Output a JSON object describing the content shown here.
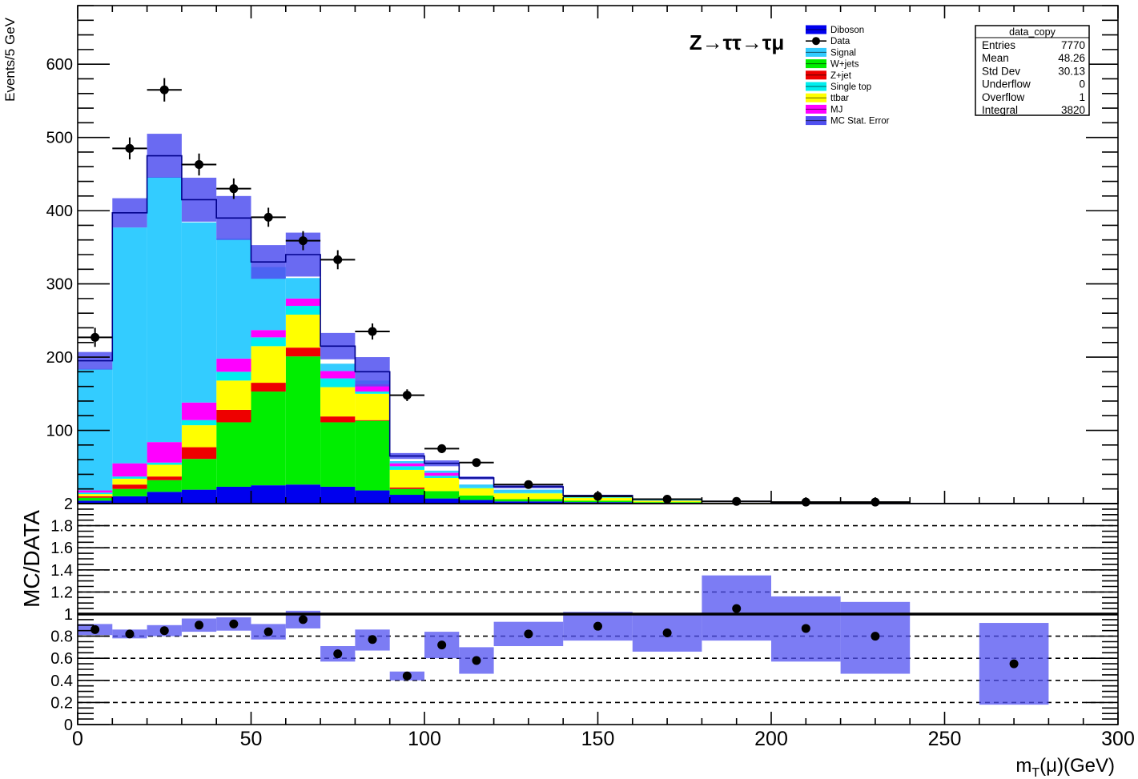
{
  "chart_data": [
    {
      "type": "bar",
      "stacked": true,
      "title": "Z→ττ→τμ",
      "ylabel": "Events/5 GeV",
      "xlabel": "",
      "xlim": [
        0,
        300
      ],
      "ylim": [
        0,
        680
      ],
      "yticks": [
        100,
        200,
        300,
        400,
        500,
        600
      ],
      "bin_edges": [
        0,
        10,
        20,
        30,
        40,
        50,
        60,
        70,
        80,
        90,
        100,
        110,
        120,
        140,
        160,
        180,
        200,
        220,
        240,
        260,
        280,
        300
      ],
      "legend_position": "top-center",
      "legend": [
        {
          "label": "Diboson",
          "color": "#0000ee"
        },
        {
          "label": "Data",
          "color": "#000000"
        },
        {
          "label": "Signal",
          "color": "#33ccff"
        },
        {
          "label": "W+jets",
          "color": "#00ee00"
        },
        {
          "label": "Z+jet",
          "color": "#ee0000"
        },
        {
          "label": "Single top",
          "color": "#00eeee"
        },
        {
          "label": "ttbar",
          "color": "#ffff00"
        },
        {
          "label": "MJ",
          "color": "#ff00ff"
        },
        {
          "label": "MC Stat. Error",
          "color": "#5050f0"
        }
      ],
      "series": [
        {
          "name": "Diboson",
          "color": "#0000ee",
          "values": [
            4,
            10,
            16,
            19,
            23,
            25,
            26,
            23,
            18,
            12,
            7,
            5,
            3,
            2,
            1,
            0,
            0,
            0,
            0,
            0,
            0
          ]
        },
        {
          "name": "W+jets",
          "color": "#00ee00",
          "values": [
            4,
            10,
            16,
            42,
            88,
            128,
            175,
            88,
            95,
            8,
            10,
            6,
            3,
            2,
            1,
            0,
            0,
            0,
            0,
            0,
            0
          ]
        },
        {
          "name": "Z+jet",
          "color": "#ee0000",
          "values": [
            2,
            6,
            5,
            16,
            17,
            12,
            12,
            8,
            1,
            2,
            0,
            0,
            0,
            0,
            0,
            0,
            0,
            0,
            0,
            0,
            0
          ]
        },
        {
          "name": "ttbar",
          "color": "#ffff00",
          "values": [
            3,
            8,
            16,
            30,
            40,
            50,
            45,
            40,
            36,
            24,
            18,
            10,
            8,
            4,
            2,
            1,
            0,
            0,
            0,
            0,
            0
          ]
        },
        {
          "name": "Single top",
          "color": "#00eeee",
          "values": [
            2,
            3,
            3,
            7,
            12,
            12,
            12,
            12,
            3,
            5,
            3,
            1,
            1,
            1,
            0,
            0,
            0,
            0,
            0,
            0,
            0
          ]
        },
        {
          "name": "MJ",
          "color": "#ff00ff",
          "values": [
            3,
            18,
            28,
            24,
            18,
            10,
            10,
            10,
            10,
            4,
            4,
            0,
            0,
            0,
            0,
            0,
            0,
            0,
            0,
            0,
            0
          ]
        },
        {
          "name": "Signal",
          "color": "#33ccff",
          "values": [
            166,
            322,
            362,
            246,
            164,
            86,
            28,
            10,
            5,
            3,
            3,
            4,
            4,
            1,
            1,
            0,
            0,
            0,
            0,
            0,
            0
          ]
        }
      ],
      "mc_total": [
        195,
        397,
        475,
        415,
        390,
        330,
        340,
        215,
        180,
        65,
        55,
        35,
        23,
        11,
        6,
        3,
        1,
        1,
        0,
        0,
        0
      ],
      "mc_stat_error": [
        12,
        20,
        30,
        30,
        30,
        23,
        30,
        18,
        20,
        4,
        4,
        2,
        2,
        1,
        1,
        1,
        0,
        0,
        0,
        0,
        0
      ],
      "data": {
        "x": [
          5,
          15,
          25,
          35,
          45,
          55,
          65,
          75,
          85,
          95,
          105,
          115,
          130,
          150,
          170,
          190,
          210,
          230
        ],
        "y": [
          227,
          485,
          565,
          463,
          430,
          391,
          359,
          333,
          235,
          148,
          75,
          56,
          26,
          10,
          6,
          3,
          2,
          2
        ],
        "yerr": [
          13,
          15,
          16,
          15,
          14,
          13,
          13,
          13,
          11,
          8,
          6,
          5,
          3,
          2,
          1,
          1,
          1,
          1
        ]
      },
      "stats_box": {
        "title": "data_copy",
        "rows": [
          {
            "label": "Entries",
            "value": "7770"
          },
          {
            "label": "Mean",
            "value": "48.26"
          },
          {
            "label": "Std Dev",
            "value": "30.13"
          },
          {
            "label": "Underflow",
            "value": "0"
          },
          {
            "label": "Overflow",
            "value": "1"
          },
          {
            "label": "Integral",
            "value": "3820"
          }
        ]
      }
    },
    {
      "type": "scatter",
      "title": "",
      "ylabel": "MC/DATA",
      "xlabel": "m_T(μ)(GeV)",
      "xlim": [
        0,
        300
      ],
      "ylim": [
        0,
        2
      ],
      "xticks": [
        0,
        50,
        100,
        150,
        200,
        250,
        300
      ],
      "yticks": [
        0,
        0.2,
        0.4,
        0.6,
        0.8,
        1,
        1.2,
        1.4,
        1.6,
        1.8,
        2
      ],
      "dashed_grid_y": [
        0.2,
        0.4,
        0.6,
        0.8,
        1.2,
        1.4,
        1.6,
        1.8
      ],
      "reference_line": 1,
      "points": {
        "x": [
          5,
          15,
          25,
          35,
          45,
          55,
          65,
          75,
          85,
          95,
          105,
          115,
          130,
          150,
          170,
          190,
          210,
          230,
          270
        ],
        "y": [
          0.86,
          0.82,
          0.85,
          0.9,
          0.91,
          0.84,
          0.95,
          0.64,
          0.77,
          0.44,
          0.72,
          0.58,
          0.82,
          0.89,
          0.83,
          1.05,
          0.87,
          0.8,
          0.55
        ]
      },
      "error_bands": [
        {
          "x0": 0,
          "x1": 10,
          "lo": 0.81,
          "hi": 0.91
        },
        {
          "x0": 10,
          "x1": 20,
          "lo": 0.78,
          "hi": 0.86
        },
        {
          "x0": 20,
          "x1": 30,
          "lo": 0.8,
          "hi": 0.9
        },
        {
          "x0": 30,
          "x1": 40,
          "lo": 0.84,
          "hi": 0.96
        },
        {
          "x0": 40,
          "x1": 50,
          "lo": 0.85,
          "hi": 0.97
        },
        {
          "x0": 50,
          "x1": 60,
          "lo": 0.77,
          "hi": 0.91
        },
        {
          "x0": 60,
          "x1": 70,
          "lo": 0.87,
          "hi": 1.03
        },
        {
          "x0": 70,
          "x1": 80,
          "lo": 0.57,
          "hi": 0.71
        },
        {
          "x0": 80,
          "x1": 90,
          "lo": 0.67,
          "hi": 0.86
        },
        {
          "x0": 90,
          "x1": 100,
          "lo": 0.4,
          "hi": 0.48
        },
        {
          "x0": 100,
          "x1": 110,
          "lo": 0.6,
          "hi": 0.84
        },
        {
          "x0": 110,
          "x1": 120,
          "lo": 0.46,
          "hi": 0.7
        },
        {
          "x0": 120,
          "x1": 140,
          "lo": 0.71,
          "hi": 0.93
        },
        {
          "x0": 140,
          "x1": 160,
          "lo": 0.76,
          "hi": 1.02
        },
        {
          "x0": 160,
          "x1": 180,
          "lo": 0.66,
          "hi": 0.99
        },
        {
          "x0": 180,
          "x1": 200,
          "lo": 0.76,
          "hi": 1.35
        },
        {
          "x0": 200,
          "x1": 220,
          "lo": 0.57,
          "hi": 1.16
        },
        {
          "x0": 220,
          "x1": 240,
          "lo": 0.46,
          "hi": 1.11
        },
        {
          "x0": 260,
          "x1": 280,
          "lo": 0.18,
          "hi": 0.92
        }
      ]
    }
  ]
}
